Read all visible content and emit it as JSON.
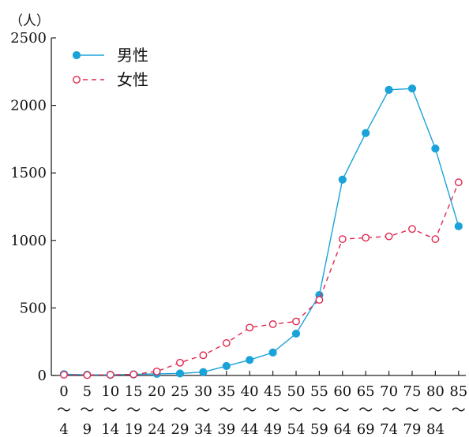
{
  "chart_data": {
    "type": "line",
    "ylabel": "（人）",
    "ylim": [
      0,
      2500
    ],
    "yticks": [
      "2500",
      "2000",
      "1500",
      "1000",
      "500",
      "0"
    ],
    "categories": [
      {
        "start": "0",
        "end": "4"
      },
      {
        "start": "5",
        "end": "9"
      },
      {
        "start": "10",
        "end": "14"
      },
      {
        "start": "15",
        "end": "19"
      },
      {
        "start": "20",
        "end": "24"
      },
      {
        "start": "25",
        "end": "29"
      },
      {
        "start": "30",
        "end": "34"
      },
      {
        "start": "35",
        "end": "39"
      },
      {
        "start": "40",
        "end": "44"
      },
      {
        "start": "45",
        "end": "49"
      },
      {
        "start": "50",
        "end": "54"
      },
      {
        "start": "55",
        "end": "59"
      },
      {
        "start": "60",
        "end": "64"
      },
      {
        "start": "65",
        "end": "69"
      },
      {
        "start": "70",
        "end": "74"
      },
      {
        "start": "75",
        "end": "79"
      },
      {
        "start": "80",
        "end": "84"
      },
      {
        "start": "85",
        "end": ""
      }
    ],
    "range_mark": "〜",
    "legend": "top-left",
    "grid": false,
    "series": [
      {
        "name": "男性",
        "color": "#1aa3d9",
        "marker": "filled-circle",
        "line": "solid",
        "values": [
          10,
          5,
          5,
          8,
          12,
          15,
          25,
          70,
          115,
          170,
          310,
          595,
          1450,
          1795,
          2115,
          2125,
          1680,
          1105
        ]
      },
      {
        "name": "女性",
        "color": "#e0284f",
        "marker": "open-circle",
        "line": "dashed",
        "values": [
          5,
          3,
          5,
          8,
          30,
          95,
          150,
          240,
          355,
          380,
          400,
          560,
          1010,
          1020,
          1030,
          1085,
          1010,
          1430
        ]
      }
    ]
  }
}
